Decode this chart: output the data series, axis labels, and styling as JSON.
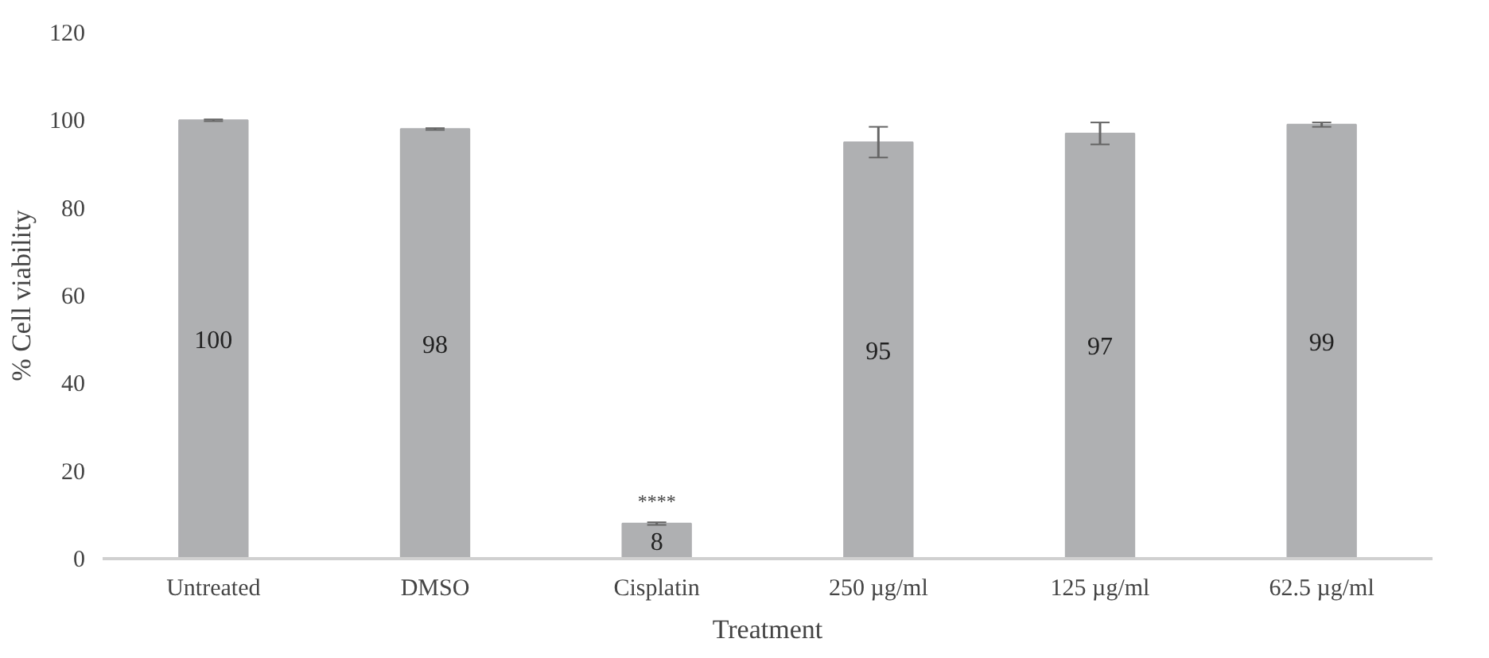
{
  "chart_data": {
    "type": "bar",
    "xlabel": "Treatment",
    "ylabel": "% Cell viability",
    "categories": [
      "Untreated",
      "DMSO",
      "Cisplatin",
      "250 µg/ml",
      "125 µg/ml",
      "62.5 µg/ml"
    ],
    "values": [
      100,
      98,
      8,
      95,
      97,
      99
    ],
    "errors": [
      0.2,
      0.2,
      0.3,
      3.5,
      2.5,
      0.5
    ],
    "color": "#afb0b2",
    "data_labels": true,
    "ylim": [
      0,
      120
    ],
    "yticks": [
      0,
      20,
      40,
      60,
      80,
      100,
      120
    ],
    "grid": false,
    "annotations": [
      "****"
    ]
  }
}
